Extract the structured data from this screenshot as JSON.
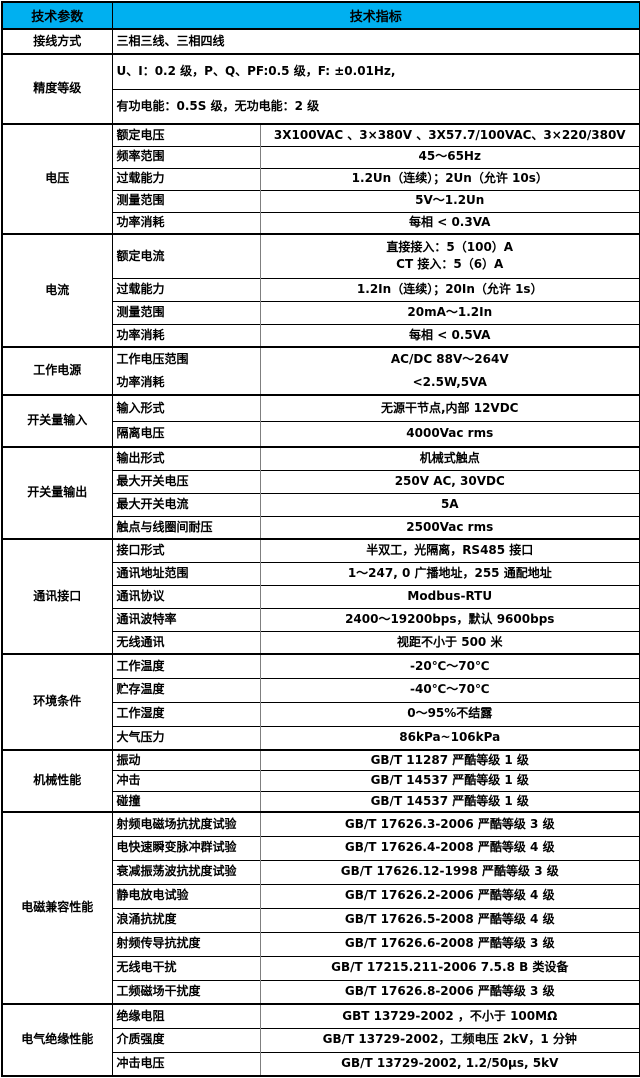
{
  "colors": {
    "header_bg": "#00B0F0",
    "border_dark": "#000000",
    "border_gray": "#7f7f7f"
  },
  "header": {
    "col_param": "技术参数",
    "col_value": "技术指标"
  },
  "groups": [
    {
      "label": "接线方式",
      "rows": [
        {
          "full": "三相三线、三相四线",
          "h": 25
        }
      ]
    },
    {
      "label": "精度等级",
      "rows": [
        {
          "full": "U、I：0.2 级，P、Q、PF:0.5 级，F: ±0.01Hz,",
          "h": 35
        },
        {
          "full": "有功电能：0.5S 级，无功电能：2 级",
          "h": 35
        }
      ]
    },
    {
      "label": "电压",
      "rows": [
        {
          "param": "额定电压",
          "value": "3X100VAC 、3×380V 、3X57.7/100VAC、3×220/380V",
          "h": 22
        },
        {
          "param": "频率范围",
          "value": "45～65Hz",
          "h": 22
        },
        {
          "param": "过载能力",
          "value": "1.2Un（连续）；2Un（允许 10s）",
          "h": 22
        },
        {
          "param": "测量范围",
          "value": "5V～1.2Un",
          "h": 22
        },
        {
          "param": "功率消耗",
          "value": "每相 < 0.3VA",
          "h": 22
        }
      ]
    },
    {
      "label": "电流",
      "rows": [
        {
          "param": "额定电流",
          "value_lines": [
            "直接接入：5（100）A",
            "CT 接入：5（6）A"
          ],
          "h": 44
        },
        {
          "param": "过载能力",
          "value": "1.2In（连续）；20In（允许 1s）",
          "h": 23
        },
        {
          "param": "测量范围",
          "value": "20mA～1.2In",
          "h": 23
        },
        {
          "param": "功率消耗",
          "value": "每相 < 0.5VA",
          "h": 23
        }
      ]
    },
    {
      "label": "工作电源",
      "seamless": true,
      "rows": [
        {
          "param": "工作电压范围",
          "value": "AC/DC 88V～264V",
          "h": 24
        },
        {
          "param": "功率消耗",
          "value": "<2.5W,5VA",
          "h": 24
        }
      ]
    },
    {
      "label": "开关量输入",
      "rows": [
        {
          "param": "输入形式",
          "value": "无源干节点,内部 12VDC",
          "h": 26
        },
        {
          "param": "隔离电压",
          "value": "4000Vac rms",
          "h": 26
        }
      ]
    },
    {
      "label": "开关量输出",
      "rows": [
        {
          "param": "输出形式",
          "value": "机械式触点",
          "h": 23
        },
        {
          "param": "最大开关电压",
          "value": "250V AC, 30VDC",
          "h": 23
        },
        {
          "param": "最大开关电流",
          "value": "5A",
          "h": 23
        },
        {
          "param": "触点与线圈间耐压",
          "value": "2500Vac rms",
          "h": 23
        }
      ]
    },
    {
      "label": "通讯接口",
      "rows": [
        {
          "param": "接口形式",
          "value": "半双工，光隔离，RS485 接口",
          "h": 23
        },
        {
          "param": "通讯地址范围",
          "value": "1～247, 0 广播地址，255 通配地址",
          "h": 23
        },
        {
          "param": "通讯协议",
          "value": "Modbus-RTU",
          "h": 23
        },
        {
          "param": "通讯波特率",
          "value": "2400～19200bps，默认 9600bps",
          "h": 23
        },
        {
          "param": "无线通讯",
          "value": "视距不小于 500 米",
          "h": 23
        }
      ]
    },
    {
      "label": "环境条件",
      "rows": [
        {
          "param": "工作温度",
          "value": "-20℃～70℃",
          "h": 24
        },
        {
          "param": "贮存温度",
          "value": "-40℃～70℃",
          "h": 24
        },
        {
          "param": "工作湿度",
          "value": "0～95%不结露",
          "h": 24
        },
        {
          "param": "大气压力",
          "value": "86kPa~106kPa",
          "h": 24
        }
      ]
    },
    {
      "label": "机械性能",
      "rows": [
        {
          "param": "振动",
          "value": "GB/T 11287 严酷等级 1 级",
          "h": 20
        },
        {
          "param": "冲击",
          "value": "GB/T 14537 严酷等级 1 级",
          "h": 20
        },
        {
          "param": "碰撞",
          "value": "GB/T 14537 严酷等级 1 级",
          "h": 20
        }
      ]
    },
    {
      "label": "电磁兼容性能",
      "rows": [
        {
          "param": "射频电磁场抗扰度试验",
          "value": "GB/T 17626.3-2006 严酷等级 3 级",
          "h": 24
        },
        {
          "param": "电快速瞬变脉冲群试验",
          "value": "GB/T 17626.4-2008 严酷等级 4 级",
          "h": 24
        },
        {
          "param": "衰减振荡波抗扰度试验",
          "value": "GB/T 17626.12-1998 严酷等级 3 级",
          "h": 24
        },
        {
          "param": "静电放电试验",
          "value": "GB/T 17626.2-2006 严酷等级 4 级",
          "h": 24
        },
        {
          "param": "浪涌抗扰度",
          "value": "GB/T 17626.5-2008 严酷等级 4 级",
          "h": 24
        },
        {
          "param": "射频传导抗扰度",
          "value": "GB/T 17626.6-2008 严酷等级 3 级",
          "h": 24
        },
        {
          "param": "无线电干扰",
          "value": "GB/T 17215.211-2006 7.5.8 B 类设备",
          "h": 24
        },
        {
          "param": "工频磁场干扰度",
          "value": "GB/T 17626.8-2006 严酷等级 3 级",
          "h": 24
        }
      ]
    },
    {
      "label": "电气绝缘性能",
      "rows": [
        {
          "param": "绝缘电阻",
          "value": "GBT 13729-2002 ，不小于 100MΩ",
          "h": 24
        },
        {
          "param": "介质强度",
          "value": "GB/T 13729-2002，工频电压 2kV，1 分钟",
          "h": 24
        },
        {
          "param": "冲击电压",
          "value": "GB/T 13729-2002, 1.2/50μs, 5kV",
          "h": 24
        }
      ]
    }
  ]
}
